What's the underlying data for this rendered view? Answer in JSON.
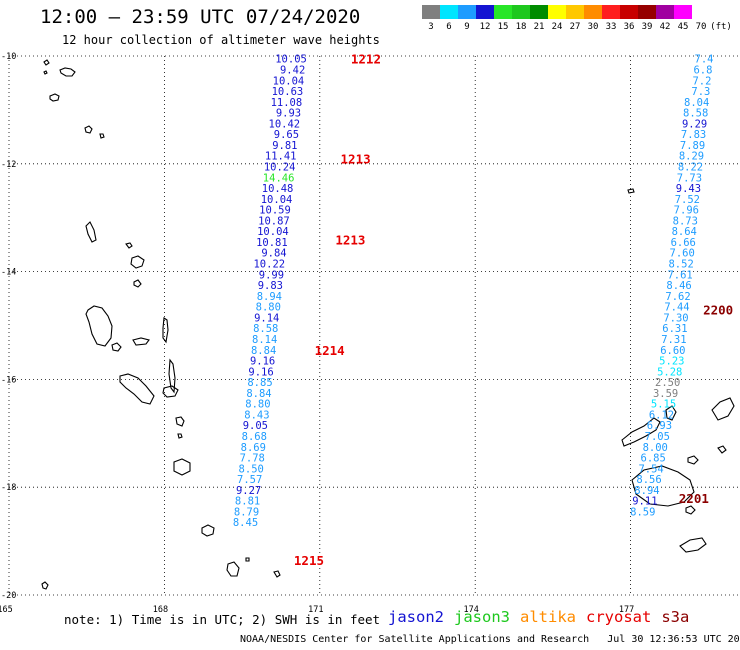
{
  "header": {
    "title": "12:00 – 23:59 UTC 07/24/2020",
    "subtitle": "12 hour collection of altimeter wave heights"
  },
  "color_scale": {
    "unit_label": "(ft)",
    "bins": [
      {
        "label": "3",
        "color": "#7f7f7f"
      },
      {
        "label": "6",
        "color": "#00e5ff"
      },
      {
        "label": "9",
        "color": "#1e9cff"
      },
      {
        "label": "12",
        "color": "#1414d2"
      },
      {
        "label": "15",
        "color": "#28e628"
      },
      {
        "label": "18",
        "color": "#1ec81e"
      },
      {
        "label": "21",
        "color": "#008c00"
      },
      {
        "label": "24",
        "color": "#ffff00"
      },
      {
        "label": "27",
        "color": "#ffc800"
      },
      {
        "label": "30",
        "color": "#ff8c00"
      },
      {
        "label": "33",
        "color": "#ff1e1e"
      },
      {
        "label": "36",
        "color": "#c80000"
      },
      {
        "label": "39",
        "color": "#960000"
      },
      {
        "label": "42",
        "color": "#a000a0"
      },
      {
        "label": "45",
        "color": "#ff00ff"
      },
      {
        "label": "70",
        "color": "#ffffff"
      }
    ]
  },
  "axes": {
    "lon_ticks": [
      {
        "value": 165,
        "label": "165"
      },
      {
        "value": 168,
        "label": "168"
      },
      {
        "value": 171,
        "label": "171"
      },
      {
        "value": 174,
        "label": "174"
      },
      {
        "value": 177,
        "label": "177"
      }
    ],
    "lat_ticks": [
      {
        "value": -10,
        "label": "-10"
      },
      {
        "value": -12,
        "label": "-12"
      },
      {
        "value": -14,
        "label": "-14"
      },
      {
        "value": -16,
        "label": "-16"
      },
      {
        "value": -18,
        "label": "-18"
      },
      {
        "value": -20,
        "label": "-20"
      }
    ],
    "lon_range": [
      165,
      178.6
    ],
    "lat_range": [
      -20,
      -10
    ]
  },
  "tracks": [
    {
      "name": "track-west",
      "points": [
        {
          "lon": 170.75,
          "lat": -10.05,
          "label": "10.05",
          "color": "#1414d2"
        },
        {
          "lon": 170.72,
          "lat": -10.25,
          "label": "9.42",
          "color": "#1414d2"
        },
        {
          "lon": 170.7,
          "lat": -10.45,
          "label": "10.04",
          "color": "#1414d2"
        },
        {
          "lon": 170.68,
          "lat": -10.65,
          "label": "10.63",
          "color": "#1414d2"
        },
        {
          "lon": 170.66,
          "lat": -10.85,
          "label": "11.08",
          "color": "#1414d2"
        },
        {
          "lon": 170.64,
          "lat": -11.05,
          "label": "9.93",
          "color": "#1414d2"
        },
        {
          "lon": 170.62,
          "lat": -11.25,
          "label": "10.42",
          "color": "#1414d2"
        },
        {
          "lon": 170.6,
          "lat": -11.45,
          "label": "9.65",
          "color": "#1414d2"
        },
        {
          "lon": 170.57,
          "lat": -11.65,
          "label": "9.81",
          "color": "#1414d2"
        },
        {
          "lon": 170.55,
          "lat": -11.85,
          "label": "11.41",
          "color": "#1414d2"
        },
        {
          "lon": 170.53,
          "lat": -12.05,
          "label": "10.24",
          "color": "#1414d2"
        },
        {
          "lon": 170.51,
          "lat": -12.25,
          "label": "14.46",
          "color": "#28e628"
        },
        {
          "lon": 170.49,
          "lat": -12.45,
          "label": "10.48",
          "color": "#1414d2"
        },
        {
          "lon": 170.47,
          "lat": -12.65,
          "label": "10.04",
          "color": "#1414d2"
        },
        {
          "lon": 170.44,
          "lat": -12.85,
          "label": "10.59",
          "color": "#1414d2"
        },
        {
          "lon": 170.42,
          "lat": -13.05,
          "label": "10.87",
          "color": "#1414d2"
        },
        {
          "lon": 170.4,
          "lat": -13.25,
          "label": "10.04",
          "color": "#1414d2"
        },
        {
          "lon": 170.38,
          "lat": -13.45,
          "label": "10.81",
          "color": "#1414d2"
        },
        {
          "lon": 170.36,
          "lat": -13.65,
          "label": "9.84",
          "color": "#1414d2"
        },
        {
          "lon": 170.33,
          "lat": -13.85,
          "label": "10.22",
          "color": "#1414d2"
        },
        {
          "lon": 170.31,
          "lat": -14.05,
          "label": "9.99",
          "color": "#1414d2"
        },
        {
          "lon": 170.29,
          "lat": -14.25,
          "label": "9.83",
          "color": "#1414d2"
        },
        {
          "lon": 170.27,
          "lat": -14.45,
          "label": "8.94",
          "color": "#1e9cff"
        },
        {
          "lon": 170.25,
          "lat": -14.65,
          "label": "8.80",
          "color": "#1e9cff"
        },
        {
          "lon": 170.22,
          "lat": -14.85,
          "label": "9.14",
          "color": "#1414d2"
        },
        {
          "lon": 170.2,
          "lat": -15.05,
          "label": "8.58",
          "color": "#1e9cff"
        },
        {
          "lon": 170.18,
          "lat": -15.25,
          "label": "8.14",
          "color": "#1e9cff"
        },
        {
          "lon": 170.16,
          "lat": -15.45,
          "label": "8.84",
          "color": "#1e9cff"
        },
        {
          "lon": 170.14,
          "lat": -15.65,
          "label": "9.16",
          "color": "#1414d2"
        },
        {
          "lon": 170.11,
          "lat": -15.85,
          "label": "9.16",
          "color": "#1414d2"
        },
        {
          "lon": 170.09,
          "lat": -16.05,
          "label": "8.85",
          "color": "#1e9cff"
        },
        {
          "lon": 170.07,
          "lat": -16.25,
          "label": "8.84",
          "color": "#1e9cff"
        },
        {
          "lon": 170.05,
          "lat": -16.45,
          "label": "8.80",
          "color": "#1e9cff"
        },
        {
          "lon": 170.03,
          "lat": -16.65,
          "label": "8.43",
          "color": "#1e9cff"
        },
        {
          "lon": 170.0,
          "lat": -16.85,
          "label": "9.05",
          "color": "#1414d2"
        },
        {
          "lon": 169.98,
          "lat": -17.05,
          "label": "8.68",
          "color": "#1e9cff"
        },
        {
          "lon": 169.96,
          "lat": -17.25,
          "label": "8.69",
          "color": "#1e9cff"
        },
        {
          "lon": 169.94,
          "lat": -17.45,
          "label": "7.78",
          "color": "#1e9cff"
        },
        {
          "lon": 169.92,
          "lat": -17.65,
          "label": "8.50",
          "color": "#1e9cff"
        },
        {
          "lon": 169.89,
          "lat": -17.85,
          "label": "7.57",
          "color": "#1e9cff"
        },
        {
          "lon": 169.87,
          "lat": -18.05,
          "label": "9.27",
          "color": "#1414d2"
        },
        {
          "lon": 169.85,
          "lat": -18.25,
          "label": "8.81",
          "color": "#1e9cff"
        },
        {
          "lon": 169.83,
          "lat": -18.45,
          "label": "8.79",
          "color": "#1e9cff"
        },
        {
          "lon": 169.81,
          "lat": -18.65,
          "label": "8.45",
          "color": "#1e9cff"
        }
      ]
    },
    {
      "name": "track-east",
      "points": [
        {
          "lon": 178.6,
          "lat": -10.05,
          "label": "7.4",
          "color": "#1e9cff"
        },
        {
          "lon": 178.58,
          "lat": -10.25,
          "label": "6.8",
          "color": "#1e9cff"
        },
        {
          "lon": 178.56,
          "lat": -10.45,
          "label": "7.2",
          "color": "#1e9cff"
        },
        {
          "lon": 178.54,
          "lat": -10.65,
          "label": "7.3",
          "color": "#1e9cff"
        },
        {
          "lon": 178.52,
          "lat": -10.85,
          "label": "8.04",
          "color": "#1e9cff"
        },
        {
          "lon": 178.5,
          "lat": -11.05,
          "label": "8.58",
          "color": "#1e9cff"
        },
        {
          "lon": 178.48,
          "lat": -11.25,
          "label": "9.29",
          "color": "#1414d2"
        },
        {
          "lon": 178.46,
          "lat": -11.45,
          "label": "7.83",
          "color": "#1e9cff"
        },
        {
          "lon": 178.44,
          "lat": -11.65,
          "label": "7.89",
          "color": "#1e9cff"
        },
        {
          "lon": 178.42,
          "lat": -11.85,
          "label": "8.29",
          "color": "#1e9cff"
        },
        {
          "lon": 178.4,
          "lat": -12.05,
          "label": "8.22",
          "color": "#1e9cff"
        },
        {
          "lon": 178.38,
          "lat": -12.25,
          "label": "7.73",
          "color": "#1e9cff"
        },
        {
          "lon": 178.36,
          "lat": -12.45,
          "label": "9.43",
          "color": "#1414d2"
        },
        {
          "lon": 178.34,
          "lat": -12.65,
          "label": "7.52",
          "color": "#1e9cff"
        },
        {
          "lon": 178.32,
          "lat": -12.85,
          "label": "7.96",
          "color": "#1e9cff"
        },
        {
          "lon": 178.3,
          "lat": -13.05,
          "label": "8.73",
          "color": "#1e9cff"
        },
        {
          "lon": 178.28,
          "lat": -13.25,
          "label": "8.64",
          "color": "#1e9cff"
        },
        {
          "lon": 178.26,
          "lat": -13.45,
          "label": "6.66",
          "color": "#1e9cff"
        },
        {
          "lon": 178.24,
          "lat": -13.65,
          "label": "7.60",
          "color": "#1e9cff"
        },
        {
          "lon": 178.22,
          "lat": -13.85,
          "label": "8.52",
          "color": "#1e9cff"
        },
        {
          "lon": 178.2,
          "lat": -14.05,
          "label": "7.61",
          "color": "#1e9cff"
        },
        {
          "lon": 178.18,
          "lat": -14.25,
          "label": "8.46",
          "color": "#1e9cff"
        },
        {
          "lon": 178.16,
          "lat": -14.45,
          "label": "7.62",
          "color": "#1e9cff"
        },
        {
          "lon": 178.14,
          "lat": -14.65,
          "label": "7.44",
          "color": "#1e9cff"
        },
        {
          "lon": 178.12,
          "lat": -14.85,
          "label": "7.30",
          "color": "#1e9cff"
        },
        {
          "lon": 178.1,
          "lat": -15.05,
          "label": "6.31",
          "color": "#1e9cff"
        },
        {
          "lon": 178.08,
          "lat": -15.25,
          "label": "7.31",
          "color": "#1e9cff"
        },
        {
          "lon": 178.06,
          "lat": -15.45,
          "label": "6.60",
          "color": "#1e9cff"
        },
        {
          "lon": 178.04,
          "lat": -15.65,
          "label": "5.23",
          "color": "#00e5ff"
        },
        {
          "lon": 178.0,
          "lat": -15.85,
          "label": "5.28",
          "color": "#00e5ff"
        },
        {
          "lon": 177.96,
          "lat": -16.05,
          "label": "2.50",
          "color": "#7f7f7f"
        },
        {
          "lon": 177.92,
          "lat": -16.25,
          "label": "3.59",
          "color": "#7f7f7f"
        },
        {
          "lon": 177.88,
          "lat": -16.45,
          "label": "5.15",
          "color": "#00e5ff"
        },
        {
          "lon": 177.84,
          "lat": -16.65,
          "label": "6.12",
          "color": "#1e9cff"
        },
        {
          "lon": 177.8,
          "lat": -16.85,
          "label": "6.93",
          "color": "#1e9cff"
        },
        {
          "lon": 177.76,
          "lat": -17.05,
          "label": "7.05",
          "color": "#1e9cff"
        },
        {
          "lon": 177.72,
          "lat": -17.25,
          "label": "8.00",
          "color": "#1e9cff"
        },
        {
          "lon": 177.68,
          "lat": -17.45,
          "label": "6.85",
          "color": "#1e9cff"
        },
        {
          "lon": 177.64,
          "lat": -17.65,
          "label": "7.54",
          "color": "#1e9cff"
        },
        {
          "lon": 177.6,
          "lat": -17.85,
          "label": "8.56",
          "color": "#1e9cff"
        },
        {
          "lon": 177.56,
          "lat": -18.05,
          "label": "8.94",
          "color": "#1e9cff"
        },
        {
          "lon": 177.52,
          "lat": -18.25,
          "label": "9.11",
          "color": "#1414d2"
        },
        {
          "lon": 177.48,
          "lat": -18.45,
          "label": "8.59",
          "color": "#1e9cff"
        }
      ]
    }
  ],
  "pass_times": [
    {
      "lon": 171.6,
      "lat": -10.05,
      "label": "1212",
      "color": "#e60000"
    },
    {
      "lon": 171.4,
      "lat": -11.9,
      "label": "1213",
      "color": "#e60000"
    },
    {
      "lon": 171.3,
      "lat": -13.4,
      "label": "1213",
      "color": "#e60000"
    },
    {
      "lon": 170.9,
      "lat": -15.45,
      "label": "1214",
      "color": "#e60000"
    },
    {
      "lon": 170.5,
      "lat": -19.35,
      "label": "1215",
      "color": "#e60000"
    },
    {
      "lon": 178.4,
      "lat": -14.7,
      "label": "2200",
      "color": "#8b0000"
    },
    {
      "lon": 177.93,
      "lat": -18.2,
      "label": "2201",
      "color": "#8b0000"
    }
  ],
  "note": "note: 1) Time is in UTC; 2) SWH is in feet",
  "legend": [
    {
      "label": "jason2",
      "color": "#1414d2"
    },
    {
      "label": "jason3",
      "color": "#1ec81e"
    },
    {
      "label": "altika",
      "color": "#ff8c00"
    },
    {
      "label": "cryosat",
      "color": "#e60000"
    },
    {
      "label": "s3a",
      "color": "#8b0000"
    }
  ],
  "footer": "NOAA/NESDIS Center for Satellite Applications and Research   Jul 30 12:36:53 UTC 2020"
}
